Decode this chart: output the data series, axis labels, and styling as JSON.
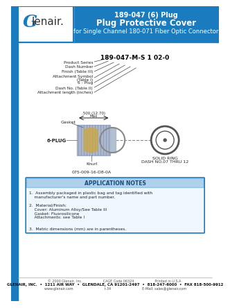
{
  "title_line1": "189-047 (6) Plug",
  "title_line2": "Plug Protective Cover",
  "title_line3": "for Single Channel 180-071 Fiber Optic Connector",
  "header_bg": "#1a7bbf",
  "header_text_color": "#ffffff",
  "logo_bg": "#ffffff",
  "sidebar_bg": "#1a7bbf",
  "part_number_label": "189-047-M-S 1 02-0",
  "callout_lines": [
    "Product Series",
    "Dash Number",
    "Finish (Table III)",
    "Attachment Symbol\n  (Table I)",
    "6 - Plug",
    "Dash No. (Table II)",
    "Attachment length (inches)"
  ],
  "diagram_labels": [
    "Gasket",
    "6-PLUG",
    "Knurl",
    "SOLID RING\nDASH NO.07 THRU 12"
  ],
  "app_notes_title": "APPLICATION NOTES",
  "app_notes_border": "#1a7bbf",
  "app_notes": [
    "1.  Assembly packaged in plastic bag and tag identified with\n    manufacturer's name and part number.",
    "2.  Material/Finish:\n    Cover: Aluminum Alloy/See Table III\n    Gasket: Fluorosilicone\n    Attachments: see Table I",
    "3.  Metric dimensions (mm) are in parentheses."
  ],
  "footer_line1": "© 2000 Glenair, Inc.                    CAGE Code 06324                    Printed in U.S.A.",
  "footer_line2": "GLENAIR, INC.  •  1211 AIR WAY  •  GLENDALE, CA 91201-2497  •  818-247-6000  •  FAX 818-500-9912",
  "footer_line3": "www.glenair.com                              I-34                              E-Mail: sales@glenair.com",
  "bg_color": "#ffffff",
  "body_text_color": "#222222",
  "dim_text_1": ".500 (12.70)",
  "dim_text_2": "Max",
  "sub_part_num": "075-009-16-D8-0A"
}
